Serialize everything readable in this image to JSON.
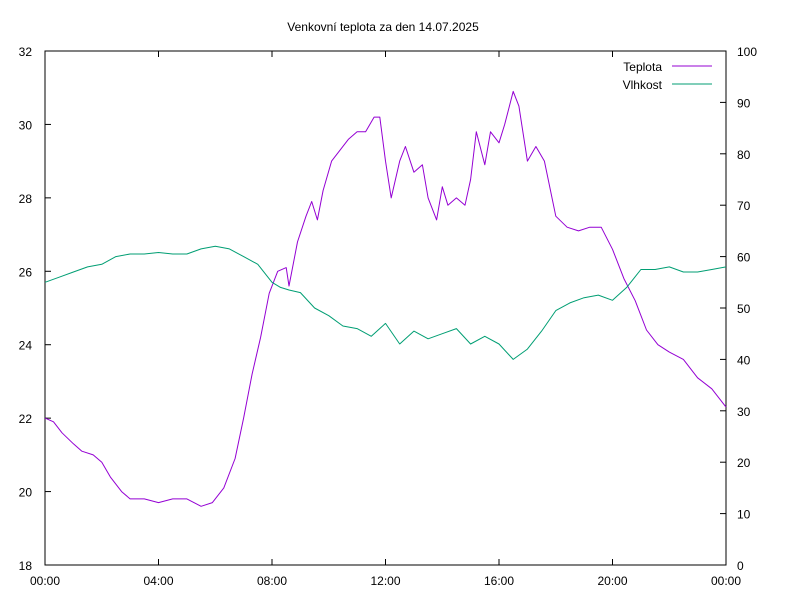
{
  "chart_data": {
    "type": "line",
    "title": "Venkovní teplota za den 14.07.2025",
    "x_ticks": [
      "00:00",
      "04:00",
      "08:00",
      "12:00",
      "16:00",
      "20:00",
      "00:00"
    ],
    "xlim_hours": [
      0,
      24
    ],
    "y_left": {
      "lim": [
        18,
        32
      ],
      "ticks": [
        "18",
        "20",
        "22",
        "24",
        "26",
        "28",
        "30",
        "32"
      ]
    },
    "y_right": {
      "lim": [
        0,
        100
      ],
      "ticks": [
        "0",
        "10",
        "20",
        "30",
        "40",
        "50",
        "60",
        "70",
        "80",
        "90",
        "100"
      ]
    },
    "grid": false,
    "legend_position": "top-right",
    "series": [
      {
        "name": "Teplota",
        "axis": "left",
        "color": "#9400d3",
        "points": [
          [
            0.0,
            22.0
          ],
          [
            0.3,
            21.9
          ],
          [
            0.6,
            21.6
          ],
          [
            1.0,
            21.3
          ],
          [
            1.3,
            21.1
          ],
          [
            1.7,
            21.0
          ],
          [
            2.0,
            20.8
          ],
          [
            2.3,
            20.4
          ],
          [
            2.7,
            20.0
          ],
          [
            3.0,
            19.8
          ],
          [
            3.5,
            19.8
          ],
          [
            4.0,
            19.7
          ],
          [
            4.5,
            19.8
          ],
          [
            5.0,
            19.8
          ],
          [
            5.5,
            19.6
          ],
          [
            5.9,
            19.7
          ],
          [
            6.3,
            20.1
          ],
          [
            6.7,
            20.9
          ],
          [
            7.0,
            22.0
          ],
          [
            7.3,
            23.2
          ],
          [
            7.6,
            24.2
          ],
          [
            7.9,
            25.4
          ],
          [
            8.2,
            26.0
          ],
          [
            8.5,
            26.1
          ],
          [
            8.6,
            25.6
          ],
          [
            8.9,
            26.8
          ],
          [
            9.2,
            27.5
          ],
          [
            9.4,
            27.9
          ],
          [
            9.6,
            27.4
          ],
          [
            9.8,
            28.2
          ],
          [
            10.1,
            29.0
          ],
          [
            10.4,
            29.3
          ],
          [
            10.7,
            29.6
          ],
          [
            11.0,
            29.8
          ],
          [
            11.3,
            29.8
          ],
          [
            11.6,
            30.2
          ],
          [
            11.8,
            30.2
          ],
          [
            12.0,
            29.0
          ],
          [
            12.2,
            28.0
          ],
          [
            12.5,
            29.0
          ],
          [
            12.7,
            29.4
          ],
          [
            13.0,
            28.7
          ],
          [
            13.3,
            28.9
          ],
          [
            13.5,
            28.0
          ],
          [
            13.8,
            27.4
          ],
          [
            14.0,
            28.3
          ],
          [
            14.2,
            27.8
          ],
          [
            14.5,
            28.0
          ],
          [
            14.8,
            27.8
          ],
          [
            15.0,
            28.5
          ],
          [
            15.2,
            29.8
          ],
          [
            15.5,
            28.9
          ],
          [
            15.7,
            29.8
          ],
          [
            16.0,
            29.5
          ],
          [
            16.2,
            30.0
          ],
          [
            16.5,
            30.9
          ],
          [
            16.7,
            30.5
          ],
          [
            17.0,
            29.0
          ],
          [
            17.3,
            29.4
          ],
          [
            17.6,
            29.0
          ],
          [
            18.0,
            27.5
          ],
          [
            18.4,
            27.2
          ],
          [
            18.8,
            27.1
          ],
          [
            19.2,
            27.2
          ],
          [
            19.6,
            27.2
          ],
          [
            20.0,
            26.6
          ],
          [
            20.4,
            25.8
          ],
          [
            20.8,
            25.2
          ],
          [
            21.2,
            24.4
          ],
          [
            21.6,
            24.0
          ],
          [
            22.0,
            23.8
          ],
          [
            22.5,
            23.6
          ],
          [
            23.0,
            23.1
          ],
          [
            23.5,
            22.8
          ],
          [
            24.0,
            22.3
          ]
        ]
      },
      {
        "name": "Vlhkost",
        "axis": "right",
        "color": "#009e73",
        "points": [
          [
            0.0,
            55.0
          ],
          [
            0.5,
            56.0
          ],
          [
            1.0,
            57.0
          ],
          [
            1.5,
            58.0
          ],
          [
            2.0,
            58.5
          ],
          [
            2.5,
            60.0
          ],
          [
            3.0,
            60.5
          ],
          [
            3.5,
            60.5
          ],
          [
            4.0,
            60.8
          ],
          [
            4.5,
            60.5
          ],
          [
            5.0,
            60.5
          ],
          [
            5.5,
            61.5
          ],
          [
            6.0,
            62.0
          ],
          [
            6.5,
            61.5
          ],
          [
            7.0,
            60.0
          ],
          [
            7.5,
            58.5
          ],
          [
            8.0,
            55.0
          ],
          [
            8.3,
            54.0
          ],
          [
            8.6,
            53.5
          ],
          [
            9.0,
            53.0
          ],
          [
            9.5,
            50.0
          ],
          [
            10.0,
            48.5
          ],
          [
            10.5,
            46.5
          ],
          [
            11.0,
            46.0
          ],
          [
            11.5,
            44.5
          ],
          [
            12.0,
            47.0
          ],
          [
            12.5,
            43.0
          ],
          [
            13.0,
            45.5
          ],
          [
            13.5,
            44.0
          ],
          [
            14.0,
            45.0
          ],
          [
            14.5,
            46.0
          ],
          [
            15.0,
            43.0
          ],
          [
            15.5,
            44.5
          ],
          [
            16.0,
            43.0
          ],
          [
            16.5,
            40.0
          ],
          [
            17.0,
            42.0
          ],
          [
            17.5,
            45.5
          ],
          [
            18.0,
            49.5
          ],
          [
            18.5,
            51.0
          ],
          [
            19.0,
            52.0
          ],
          [
            19.5,
            52.5
          ],
          [
            20.0,
            51.5
          ],
          [
            20.5,
            54.0
          ],
          [
            21.0,
            57.5
          ],
          [
            21.5,
            57.5
          ],
          [
            22.0,
            58.0
          ],
          [
            22.5,
            57.0
          ],
          [
            23.0,
            57.0
          ],
          [
            23.5,
            57.5
          ],
          [
            24.0,
            58.0
          ]
        ]
      }
    ]
  }
}
